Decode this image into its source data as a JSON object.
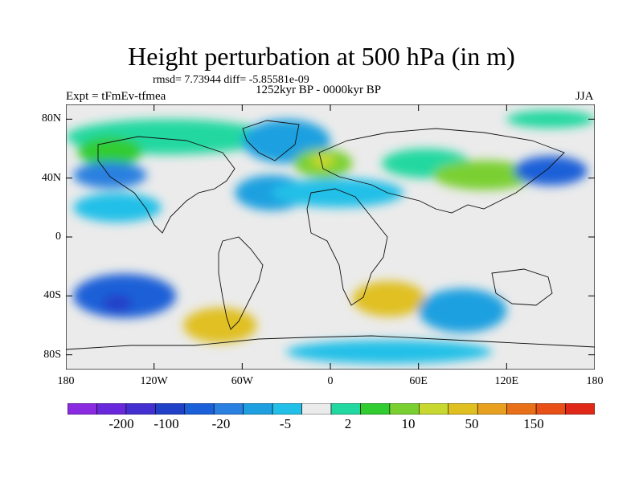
{
  "title": "Height perturbation at 500 hPa (in m)",
  "stats": "rmsd= 7.73944 diff= -5.85581e-09",
  "experiment": "Expt = tFmEv-tfmea",
  "period": "1252kyr BP - 0000kyr BP",
  "season": "JJA",
  "lat_labels": [
    "80N",
    "40N",
    "0",
    "40S",
    "80S"
  ],
  "lon_labels": [
    "180",
    "120W",
    "60W",
    "0",
    "60E",
    "120E",
    "180"
  ],
  "colorbar": {
    "colors": [
      "#8a2be2",
      "#6a28dc",
      "#4430d0",
      "#2040c8",
      "#1a60d8",
      "#2a80e0",
      "#1ea0e0",
      "#22c0e8",
      "#ebebeb",
      "#20d8a0",
      "#30cc30",
      "#7ad030",
      "#c8d830",
      "#e0c020",
      "#e8a020",
      "#e87018",
      "#e85018",
      "#e02818"
    ],
    "labels": [
      "-200",
      "-100",
      "-20",
      "-5",
      "2",
      "10",
      "50",
      "150"
    ]
  },
  "regions": [
    {
      "name": "arctic-band-positive",
      "color": "#20d8a0",
      "lon": -110,
      "lat": 68,
      "rlon": 70,
      "rlat": 12
    },
    {
      "name": "north-pacific-high",
      "color": "#30cc30",
      "lon": -150,
      "lat": 58,
      "rlon": 22,
      "rlat": 10
    },
    {
      "name": "north-pacific-low",
      "color": "#2a80e0",
      "lon": -150,
      "lat": 42,
      "rlon": 25,
      "rlat": 9
    },
    {
      "name": "subtropical-pacific-low",
      "color": "#22c0e8",
      "lon": -145,
      "lat": 20,
      "rlon": 30,
      "rlat": 10
    },
    {
      "name": "greenland-low",
      "color": "#1ea0e0",
      "lon": -30,
      "lat": 65,
      "rlon": 30,
      "rlat": 15
    },
    {
      "name": "atlantic-low",
      "color": "#1ea0e0",
      "lon": -40,
      "lat": 30,
      "rlon": 25,
      "rlat": 12
    },
    {
      "name": "europe-high",
      "color": "#7ad030",
      "lon": -5,
      "lat": 50,
      "rlon": 20,
      "rlat": 10
    },
    {
      "name": "europe-high-core",
      "color": "#c8d830",
      "lon": -5,
      "lat": 52,
      "rlon": 8,
      "rlat": 5
    },
    {
      "name": "siberia-high",
      "color": "#20d8a0",
      "lon": 65,
      "lat": 50,
      "rlon": 30,
      "rlat": 10
    },
    {
      "name": "mongolia-high",
      "color": "#7ad030",
      "lon": 105,
      "lat": 42,
      "rlon": 35,
      "rlat": 10
    },
    {
      "name": "northwest-pacific-low",
      "color": "#1a60d8",
      "lon": 150,
      "lat": 45,
      "rlon": 25,
      "rlat": 10
    },
    {
      "name": "arctic-east-high",
      "color": "#20d8a0",
      "lon": 150,
      "lat": 80,
      "rlon": 30,
      "rlat": 6
    },
    {
      "name": "africa-low",
      "color": "#22c0e8",
      "lon": 5,
      "lat": 30,
      "rlon": 45,
      "rlat": 10
    },
    {
      "name": "south-pacific-low",
      "color": "#1a60d8",
      "lon": -140,
      "lat": -40,
      "rlon": 35,
      "rlat": 15
    },
    {
      "name": "south-pacific-core",
      "color": "#2040c8",
      "lon": -145,
      "lat": -45,
      "rlon": 10,
      "rlat": 6
    },
    {
      "name": "south-america-high",
      "color": "#e0c020",
      "lon": -75,
      "lat": -60,
      "rlon": 25,
      "rlat": 12
    },
    {
      "name": "south-atlantic-high",
      "color": "#e0c020",
      "lon": 40,
      "lat": -42,
      "rlon": 25,
      "rlat": 12
    },
    {
      "name": "indian-ocean-low",
      "color": "#1ea0e0",
      "lon": 90,
      "lat": -50,
      "rlon": 30,
      "rlat": 15
    },
    {
      "name": "antarctic-low",
      "color": "#22c0e8",
      "lon": 40,
      "lat": -78,
      "rlon": 70,
      "rlat": 8
    }
  ]
}
